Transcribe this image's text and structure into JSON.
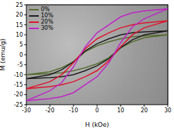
{
  "chart_data": {
    "type": "line",
    "x_label": "H (kOe)",
    "y_label": "M (emu/g)",
    "xlim": [
      -30,
      30
    ],
    "xticks": [
      -30,
      -20,
      -10,
      0,
      10,
      20,
      30
    ],
    "ylim": [
      -25,
      25
    ],
    "yticks": [
      -25,
      -20,
      -15,
      -10,
      -5,
      0,
      5,
      10,
      15,
      20,
      25
    ],
    "legend": "top-left",
    "x": [
      30,
      20,
      15,
      10,
      5,
      0,
      -5,
      -10,
      -15,
      -20,
      -30,
      -20,
      -15,
      -10,
      -5,
      0,
      5,
      10,
      15,
      20,
      30
    ],
    "series": [
      {
        "name": "0%",
        "color": "#556b2f",
        "values": [
          10,
          9.5,
          9,
          8,
          6.5,
          4.5,
          1.5,
          -3.5,
          -6.5,
          -8.5,
          -10,
          -9.5,
          -9,
          -8,
          -6.5,
          -4.5,
          -1.5,
          3.5,
          6.5,
          8.5,
          10
        ]
      },
      {
        "name": "10%",
        "color": "#1a1a1a",
        "values": [
          12,
          11.5,
          11,
          10,
          8,
          5.5,
          2,
          -3.5,
          -7.5,
          -10,
          -12,
          -11.5,
          -11,
          -10,
          -8,
          -5.5,
          -2,
          3.5,
          7.5,
          10,
          12
        ]
      },
      {
        "name": "20%",
        "color": "#e0102a",
        "values": [
          17,
          16,
          15,
          13.5,
          11,
          8,
          3,
          -4,
          -10,
          -13.5,
          -17,
          -16,
          -15,
          -13.5,
          -11,
          -8,
          -3,
          4,
          10,
          13.5,
          17
        ]
      },
      {
        "name": "30%",
        "color": "#c020c8",
        "values": [
          23,
          22,
          21,
          19,
          15,
          11,
          4,
          -6,
          -14,
          -18,
          -23,
          -22,
          -21,
          -19,
          -15,
          -11,
          -4,
          6,
          14,
          18,
          23
        ]
      }
    ]
  }
}
